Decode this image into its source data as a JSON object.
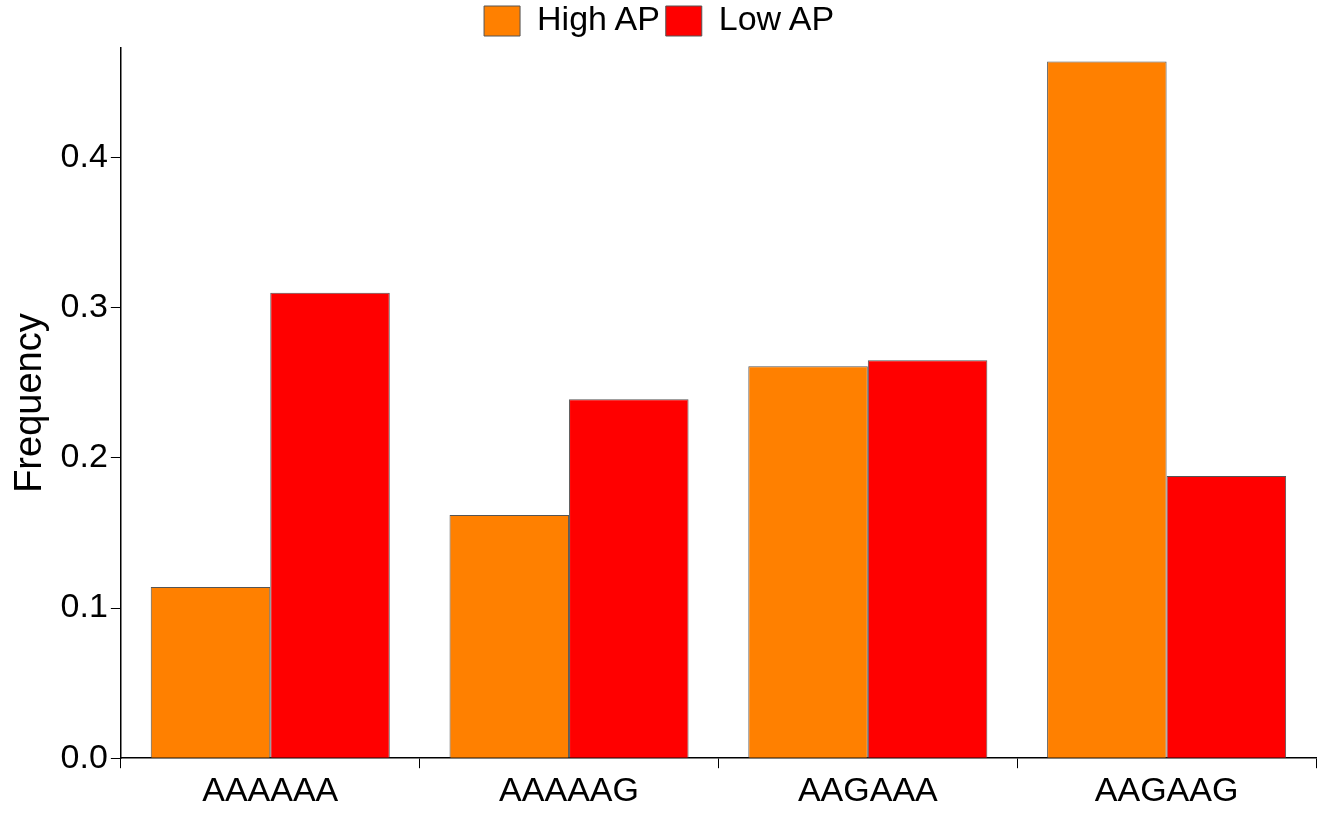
{
  "chart_data": {
    "type": "bar",
    "ylabel": "Frequency",
    "categories": [
      "AAAAAA",
      "AAAAAG",
      "AAGAAA",
      "AAGAAG"
    ],
    "series": [
      {
        "name": "High AP",
        "color": "#ff8000",
        "values": [
          0.114,
          0.162,
          0.261,
          0.464
        ]
      },
      {
        "name": "Low AP",
        "color": "#ff0000",
        "values": [
          0.31,
          0.239,
          0.265,
          0.188
        ]
      }
    ],
    "ylim": [
      0,
      0.473
    ],
    "yticks": [
      {
        "value": 0,
        "label": "0.0"
      },
      {
        "value": 0.1,
        "label": "0.1"
      },
      {
        "value": 0.2,
        "label": "0.2"
      },
      {
        "value": 0.3,
        "label": "0.3"
      },
      {
        "value": 0.4,
        "label": "0.4"
      }
    ],
    "grid": false,
    "legend": "top"
  }
}
